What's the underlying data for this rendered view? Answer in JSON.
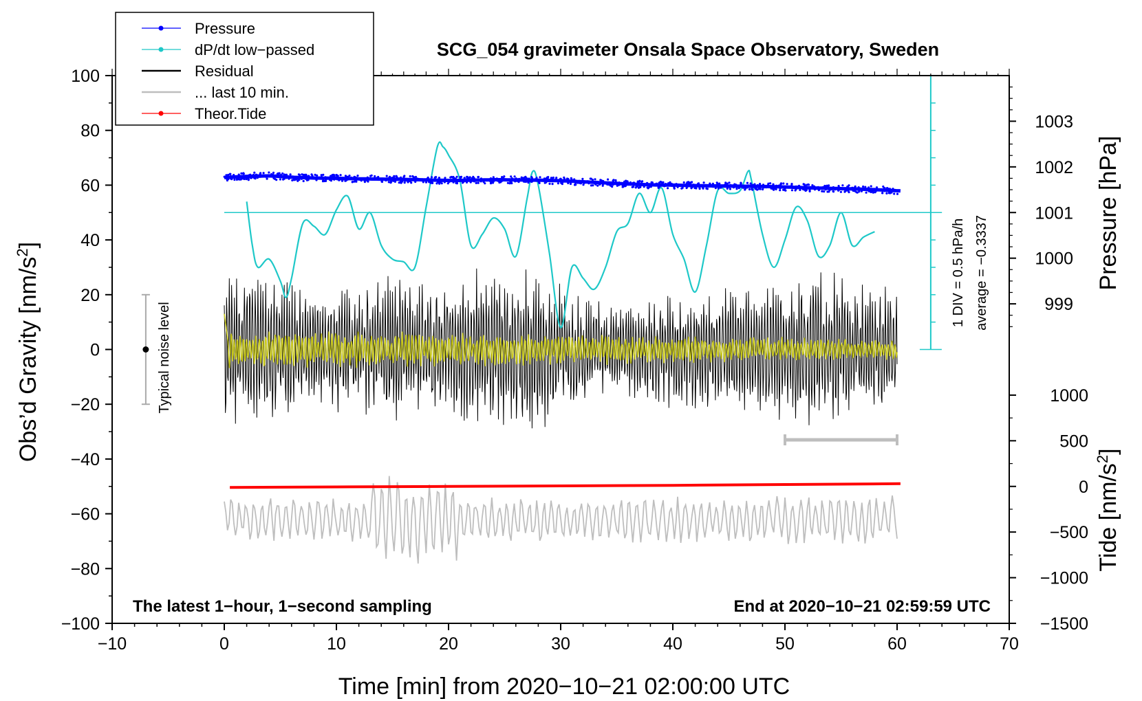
{
  "chart_data": {
    "type": "line",
    "title": "SCG_054 gravimeter Onsala Space Observatory, Sweden",
    "xlabel": "Time [min] from 2020−10−21 02:00:00 UTC",
    "ylabel_left": "Obs’d Gravity [nm/s",
    "ylabel_left_sup": "2",
    "ylabel_left_end": "]",
    "ylabel_right_pressure": "Pressure [hPa]",
    "ylabel_right_tide": "Tide [nm/s",
    "ylabel_right_tide_sup": "2",
    "ylabel_right_tide_end": "]",
    "xlim": [
      -10,
      70
    ],
    "ylim": [
      -100,
      100
    ],
    "x_ticks": [
      "−10",
      "0",
      "10",
      "20",
      "30",
      "40",
      "50",
      "60",
      "70"
    ],
    "x_tick_values": [
      -10,
      0,
      10,
      20,
      30,
      40,
      50,
      60,
      70
    ],
    "y_ticks": [
      "100",
      "80",
      "60",
      "40",
      "20",
      "0",
      "−20",
      "−40",
      "−60",
      "−80",
      "−100"
    ],
    "y_tick_values": [
      100,
      80,
      60,
      40,
      20,
      0,
      -20,
      -40,
      -60,
      -80,
      -100
    ],
    "pressure_axis": {
      "ticks": [
        "1003",
        "1002",
        "1001",
        "1000",
        "999"
      ],
      "values": [
        1003,
        1002,
        1001,
        1000,
        999
      ],
      "gravity_at_1001": 50,
      "gravity_per_hPa": 16.67
    },
    "tide_axis": {
      "ticks": [
        "1000",
        "500",
        "0",
        "−500",
        "−1000",
        "−1500"
      ],
      "values": [
        1000,
        500,
        0,
        -500,
        -1000,
        -1500
      ],
      "gravity_at_0": -50,
      "gravity_per_unit": 0.03333
    },
    "legend": [
      {
        "label": "Pressure",
        "color": "#0000ff",
        "style": "dot-line"
      },
      {
        "label": "dP/dt low−passed",
        "color": "#1ec8c8",
        "style": "dot-line"
      },
      {
        "label": "Residual",
        "color": "#000000",
        "style": "line"
      },
      {
        "label": "... last 10 min.",
        "color": "#bebebe",
        "style": "line"
      },
      {
        "label": "Theor.Tide",
        "color": "#ff0000",
        "style": "dot-line"
      }
    ],
    "dpdt_scale": {
      "label1": "1 DIV = 0.5 hPa/h",
      "label2": "average = −0.3337",
      "x": 63,
      "ymin": 0,
      "ymax": 100,
      "ref_level": 50
    },
    "noise_bar": {
      "label": "Typical noise level",
      "x": -7,
      "center": 0,
      "low": -20,
      "high": 20
    },
    "window_bar": {
      "x_start": 50,
      "x_end": 60,
      "y": -33
    },
    "series": [
      {
        "name": "Pressure",
        "color": "#0000ff",
        "x": [
          0,
          2,
          4,
          6,
          8,
          10,
          12,
          14,
          16,
          18,
          20,
          22,
          24,
          26,
          28,
          30,
          32,
          34,
          36,
          38,
          40,
          42,
          44,
          46,
          48,
          50,
          52,
          54,
          56,
          58,
          60.3
        ],
        "y": [
          62.8,
          63.2,
          63.4,
          62.9,
          62.6,
          62.5,
          62.3,
          62.2,
          62.1,
          61.9,
          61.7,
          61.8,
          62.0,
          61.9,
          61.8,
          61.6,
          61.2,
          60.8,
          60.4,
          60.1,
          60.0,
          59.8,
          59.7,
          59.6,
          59.5,
          59.3,
          59.0,
          58.8,
          58.6,
          58.3,
          57.9
        ]
      },
      {
        "name": "dP/dt low-passed",
        "color": "#1ec8c8",
        "x": [
          2,
          2.5,
          3,
          4,
          5,
          5.5,
          6,
          7,
          8,
          9,
          10,
          11,
          12,
          13,
          14,
          15,
          16,
          17,
          18,
          19,
          19.5,
          20,
          21,
          22,
          23,
          24,
          25,
          26,
          27,
          27.5,
          28,
          29,
          30,
          31,
          32,
          33,
          34,
          35,
          36,
          37,
          38,
          39,
          40,
          41,
          42,
          43,
          44,
          45,
          46,
          46.7,
          47,
          48,
          49,
          50,
          51,
          52,
          53,
          54,
          55,
          56,
          57,
          58
        ],
        "y": [
          54,
          38,
          30,
          33,
          25,
          19,
          26,
          46,
          45,
          42,
          51,
          56,
          44,
          50,
          38,
          33,
          32,
          30,
          52,
          74,
          74,
          71,
          62,
          38,
          42,
          48,
          44,
          34,
          55,
          65,
          60,
          35,
          8,
          30,
          26,
          22,
          30,
          43,
          46,
          57,
          50,
          59,
          42,
          33,
          21,
          38,
          58,
          57,
          58,
          65,
          62,
          42,
          30,
          40,
          52,
          47,
          34,
          38,
          50,
          38,
          41,
          43
        ]
      },
      {
        "name": "Residual",
        "color": "#000000",
        "x_start": 0,
        "x_end": 60,
        "points": 1200,
        "amplitude_envelope": [
          28,
          26,
          24,
          20,
          22,
          22,
          26,
          25,
          27,
          28,
          26,
          30,
          22,
          18,
          16,
          18,
          20,
          22,
          21,
          24,
          26,
          27,
          25,
          23,
          20
        ],
        "y_min": -36,
        "y_max": 35
      },
      {
        "name": "... last 10 min.",
        "color": "#bebebe",
        "x_start": 0,
        "x_end": 60,
        "center": -62,
        "y_min": -88,
        "y_max": -39
      },
      {
        "name": "Theor.Tide",
        "color": "#ff0000",
        "x": [
          0.5,
          10,
          20,
          30,
          40,
          50,
          60.3
        ],
        "y": [
          -50.4,
          -50.2,
          -50.0,
          -49.8,
          -49.6,
          -49.3,
          -49.0
        ]
      }
    ]
  },
  "annotations": {
    "bottom_left": "The latest 1−hour, 1−second sampling",
    "bottom_right": "End at 2020−10−21 02:59:59 UTC"
  },
  "colors": {
    "pressure": "#0000ff",
    "dpdt": "#1ec8c8",
    "residual": "#000000",
    "last10": "#bebebe",
    "tide": "#ff0000",
    "lowpass": "#c8c81e"
  }
}
